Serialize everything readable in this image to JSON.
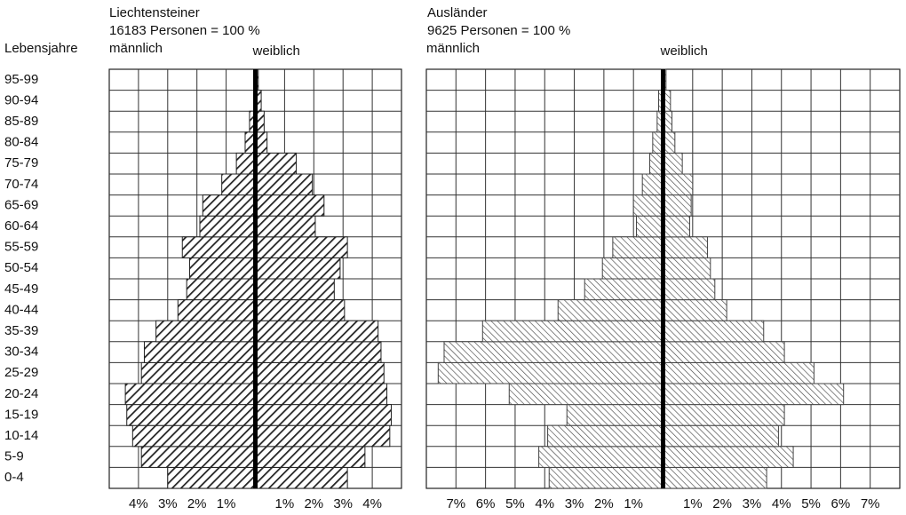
{
  "chart_data": [
    {
      "type": "pyramid",
      "title": "Liechtensteiner",
      "subtitle": "16183 Personen = 100 %",
      "y_label": "Lebensjahre",
      "categories": [
        "0-4",
        "5-9",
        "10-14",
        "15-19",
        "20-24",
        "25-29",
        "30-34",
        "35-39",
        "40-44",
        "45-49",
        "50-54",
        "55-59",
        "60-64",
        "65-69",
        "70-74",
        "75-79",
        "80-84",
        "85-89",
        "90-94",
        "95-99"
      ],
      "series": [
        {
          "name": "männlich",
          "color": "#222222",
          "values": [
            3.0,
            3.9,
            4.2,
            4.4,
            4.45,
            3.9,
            3.8,
            3.4,
            2.65,
            2.35,
            2.25,
            2.5,
            1.9,
            1.8,
            1.15,
            0.65,
            0.35,
            0.2,
            0.05,
            0.05
          ]
        },
        {
          "name": "weiblich",
          "color": "#222222",
          "values": [
            3.15,
            3.75,
            4.6,
            4.65,
            4.5,
            4.4,
            4.3,
            4.2,
            3.05,
            2.7,
            2.9,
            3.15,
            2.05,
            2.35,
            1.95,
            1.4,
            0.4,
            0.3,
            0.2,
            0.1
          ]
        }
      ],
      "xlim": [
        -5,
        5
      ],
      "xticks": [
        {
          "value": -4,
          "label": "4%"
        },
        {
          "value": -3,
          "label": "3%"
        },
        {
          "value": -2,
          "label": "2%"
        },
        {
          "value": -1,
          "label": "1%"
        },
        {
          "value": 1,
          "label": "1%"
        },
        {
          "value": 2,
          "label": "2%"
        },
        {
          "value": 3,
          "label": "3%"
        },
        {
          "value": 4,
          "label": "4%"
        }
      ],
      "grid": true
    },
    {
      "type": "pyramid",
      "title": "Ausländer",
      "subtitle": "9625 Personen = 100 %",
      "series": [
        {
          "name": "männlich",
          "color": "#444444",
          "values": [
            3.85,
            4.2,
            3.9,
            3.25,
            5.2,
            7.6,
            7.4,
            6.1,
            3.55,
            2.65,
            2.05,
            1.7,
            0.9,
            1.0,
            0.7,
            0.45,
            0.35,
            0.2,
            0.15,
            0.05
          ]
        },
        {
          "name": "weiblich",
          "color": "#444444",
          "values": [
            3.5,
            4.4,
            3.9,
            4.1,
            6.1,
            5.1,
            4.1,
            3.4,
            2.15,
            1.75,
            1.6,
            1.5,
            0.9,
            0.95,
            1.0,
            0.65,
            0.4,
            0.3,
            0.25,
            0.1
          ]
        }
      ],
      "xlim": [
        -8,
        8
      ],
      "xticks": [
        {
          "value": -7,
          "label": "7%"
        },
        {
          "value": -6,
          "label": "6%"
        },
        {
          "value": -5,
          "label": "5%"
        },
        {
          "value": -4,
          "label": "4%"
        },
        {
          "value": -3,
          "label": "3%"
        },
        {
          "value": -2,
          "label": "2%"
        },
        {
          "value": -1,
          "label": "1%"
        },
        {
          "value": 1,
          "label": "1%"
        },
        {
          "value": 2,
          "label": "2%"
        },
        {
          "value": 3,
          "label": "3%"
        },
        {
          "value": 4,
          "label": "4%"
        },
        {
          "value": 5,
          "label": "5%"
        },
        {
          "value": 6,
          "label": "6%"
        },
        {
          "value": 7,
          "label": "7%"
        }
      ],
      "grid": true
    }
  ]
}
